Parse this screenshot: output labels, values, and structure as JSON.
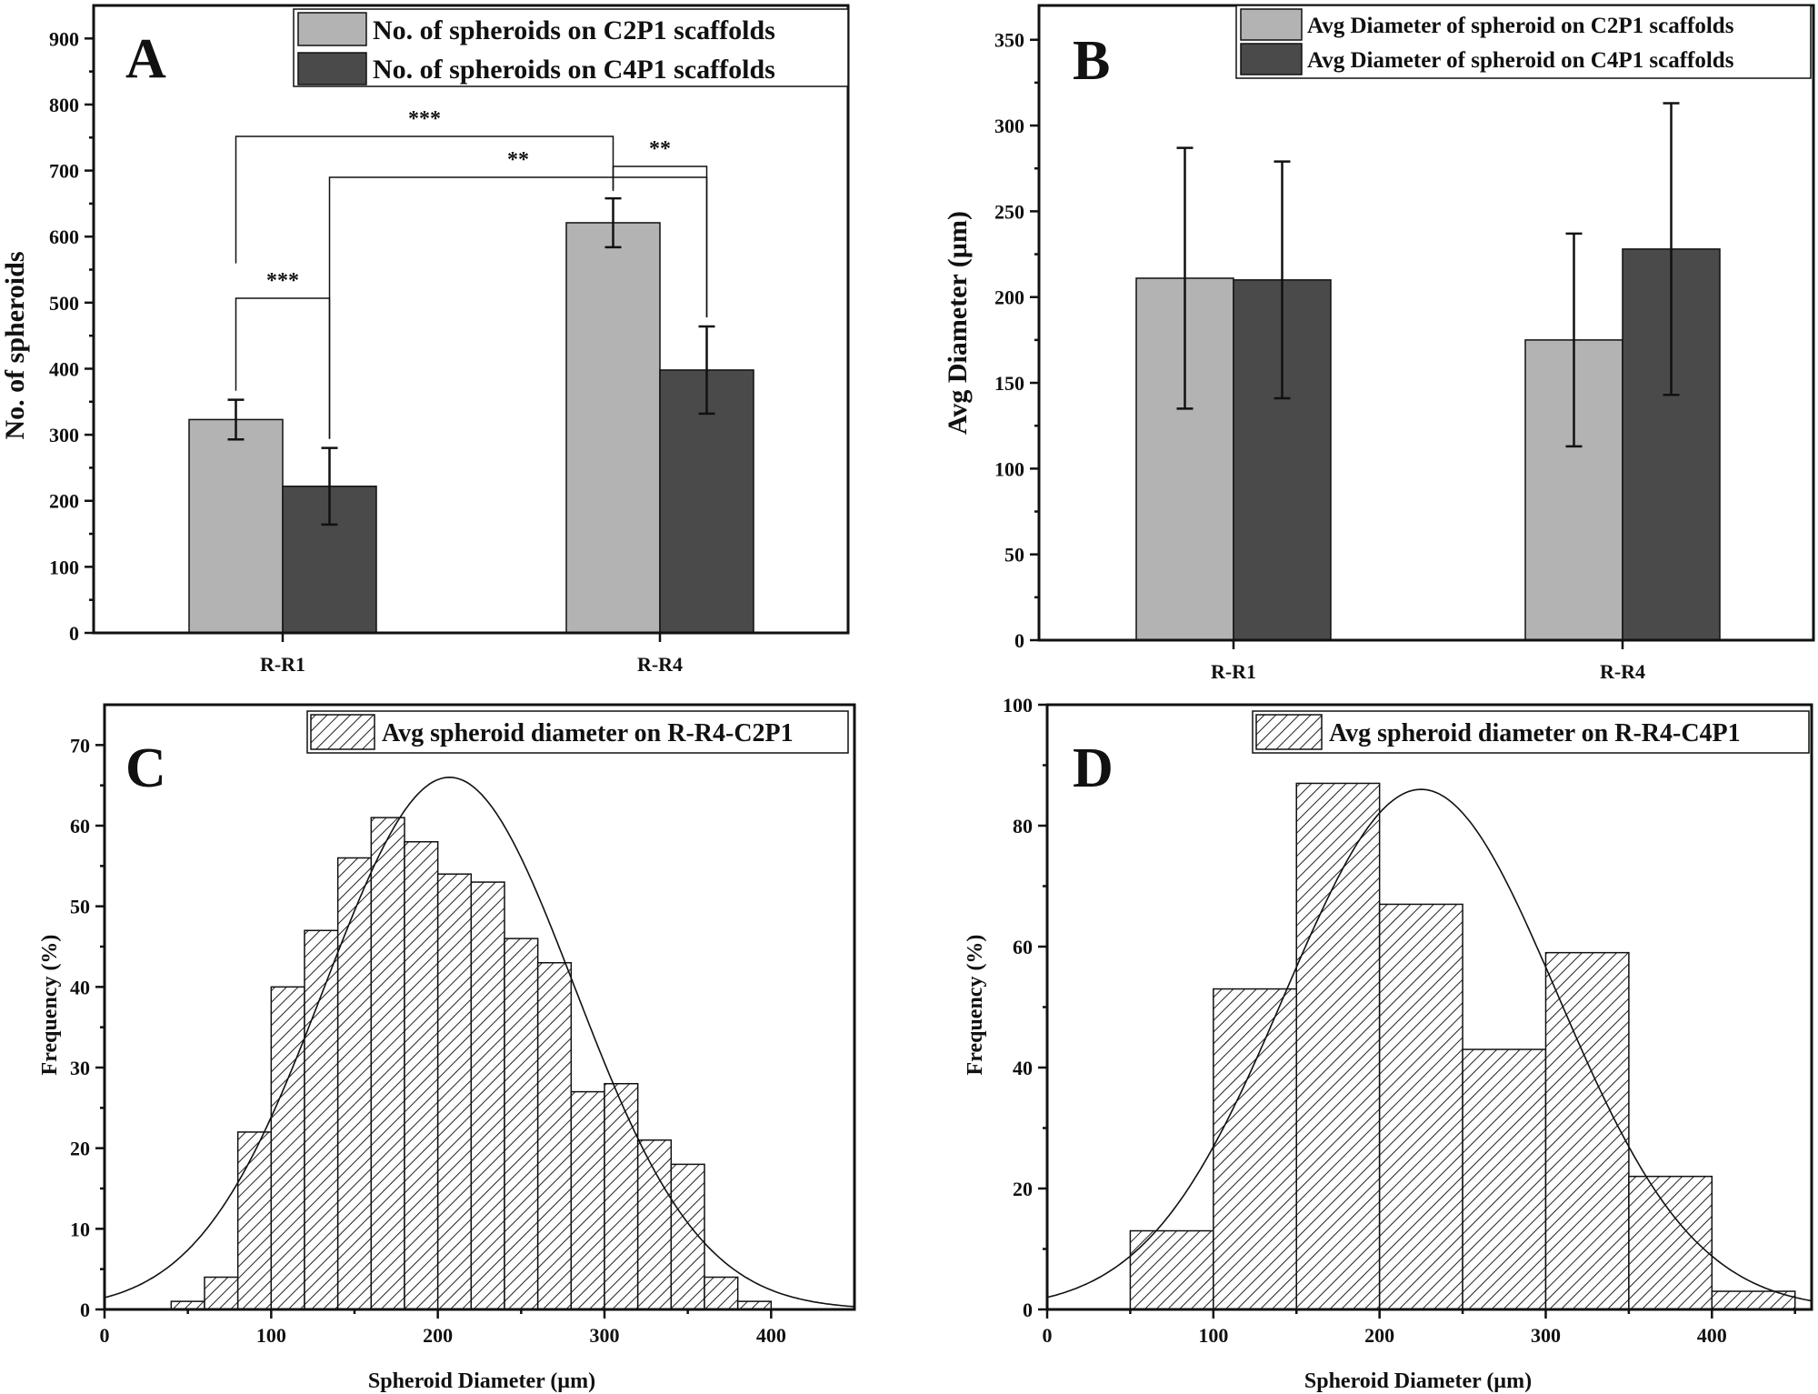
{
  "chart_data": [
    {
      "panel": "A",
      "type": "bar",
      "categories": [
        "R-R1",
        "R-R4"
      ],
      "series": [
        {
          "name": "No. of spheroids on C2P1 scaffolds",
          "values": [
            323,
            621
          ],
          "errors": [
            30,
            37
          ],
          "color": "#b3b3b3"
        },
        {
          "name": "No. of spheroids on C4P1 scaffolds",
          "values": [
            222,
            398
          ],
          "errors": [
            58,
            66
          ],
          "color": "#4a4a4a"
        }
      ],
      "significance": [
        {
          "from": "R-R1 C2P1",
          "to": "R-R1 C4P1",
          "label": "***"
        },
        {
          "from": "R-R1 C2P1",
          "to": "R-R4 C2P1",
          "label": "***"
        },
        {
          "from": "R-R1 C4P1",
          "to": "R-R4 C4P1",
          "label": "**"
        },
        {
          "from": "R-R4 C2P1",
          "to": "R-R4 C4P1",
          "label": "**"
        }
      ],
      "title": "",
      "xlabel": "",
      "ylabel": "No. of spheroids",
      "ylim": [
        0,
        950
      ],
      "yticks": [
        0,
        100,
        200,
        300,
        400,
        500,
        600,
        700,
        800,
        900
      ],
      "legend": "top-right"
    },
    {
      "panel": "B",
      "type": "bar",
      "categories": [
        "R-R1",
        "R-R4"
      ],
      "series": [
        {
          "name": "Avg Diameter of spheroid on C2P1 scaffolds",
          "values": [
            211,
            175
          ],
          "errors": [
            76,
            62
          ],
          "color": "#b3b3b3"
        },
        {
          "name": "Avg Diameter of spheroid on C4P1 scaffolds",
          "values": [
            210,
            228
          ],
          "errors": [
            69,
            85
          ],
          "color": "#4a4a4a"
        }
      ],
      "title": "",
      "xlabel": "",
      "ylabel": "Avg Diameter (µm)",
      "ylim": [
        0,
        370
      ],
      "yticks": [
        0,
        50,
        100,
        150,
        200,
        250,
        300,
        350
      ],
      "legend": "top-right"
    },
    {
      "panel": "C",
      "type": "histogram",
      "bin_edges": [
        40,
        60,
        80,
        100,
        120,
        140,
        160,
        180,
        200,
        220,
        240,
        260,
        280,
        300,
        320,
        340,
        360,
        380,
        400
      ],
      "values": [
        1,
        4,
        22,
        40,
        47,
        56,
        61,
        58,
        54,
        53,
        46,
        43,
        27,
        28,
        21,
        18,
        4,
        1
      ],
      "fit": {
        "kind": "normal",
        "mean": 207,
        "sd": 75,
        "peak": 66
      },
      "series_name": "Avg spheroid diameter on R-R4-C2P1",
      "xlabel": "Spheroid Diameter (µm)",
      "ylabel": "Frequency (%)",
      "xlim": [
        0,
        450
      ],
      "ylim": [
        0,
        75
      ],
      "xticks": [
        0,
        100,
        200,
        300,
        400
      ],
      "yticks": [
        0,
        10,
        20,
        30,
        40,
        50,
        60,
        70
      ],
      "legend": "top-right"
    },
    {
      "panel": "D",
      "type": "histogram",
      "bin_edges": [
        50,
        100,
        150,
        200,
        250,
        300,
        350,
        400,
        450
      ],
      "values": [
        13,
        53,
        87,
        67,
        43,
        59,
        22,
        3
      ],
      "fit": {
        "kind": "normal",
        "mean": 225,
        "sd": 82,
        "peak": 86
      },
      "series_name": "Avg spheroid diameter on R-R4-C4P1",
      "xlabel": "Spheroid Diameter (µm)",
      "ylabel": "Frequency (%)",
      "xlim": [
        0,
        460
      ],
      "ylim": [
        0,
        100
      ],
      "xticks": [
        0,
        100,
        200,
        300,
        400
      ],
      "yticks": [
        0,
        20,
        40,
        60,
        80,
        100
      ],
      "legend": "top-right"
    }
  ],
  "colors": {
    "axis": "#111111",
    "light_bar": "#b3b3b3",
    "dark_bar": "#4a4a4a",
    "hatch": "#222222"
  }
}
